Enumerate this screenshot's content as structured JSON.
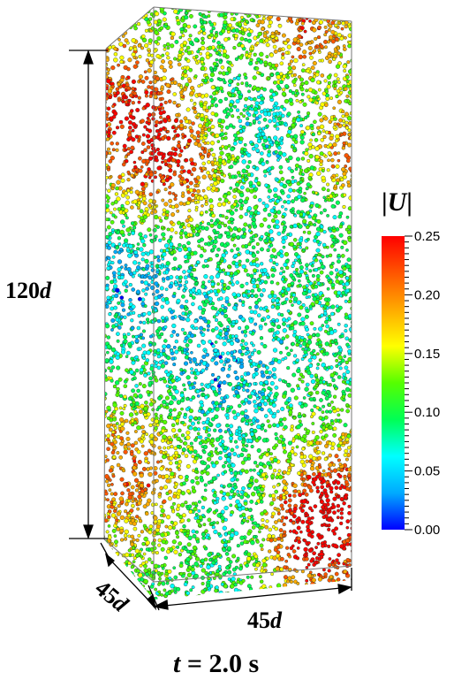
{
  "dimensions": {
    "height_value": "120",
    "depth_value": "45",
    "width_value": "45",
    "unit_symbol": "d"
  },
  "colorbar": {
    "symbol": "U",
    "ticks": [
      "0.25",
      "0.20",
      "0.15",
      "0.10",
      "0.05",
      "0.00"
    ],
    "min": 0,
    "max": 0.25,
    "colors": [
      "#0000ff",
      "#00aaff",
      "#00ffff",
      "#00ff55",
      "#55ff00",
      "#ffff00",
      "#ffaa00",
      "#ff5500",
      "#ff0000"
    ]
  },
  "caption": {
    "symbol": "t",
    "equals": "=",
    "value": "2.0",
    "unit": "s"
  }
}
